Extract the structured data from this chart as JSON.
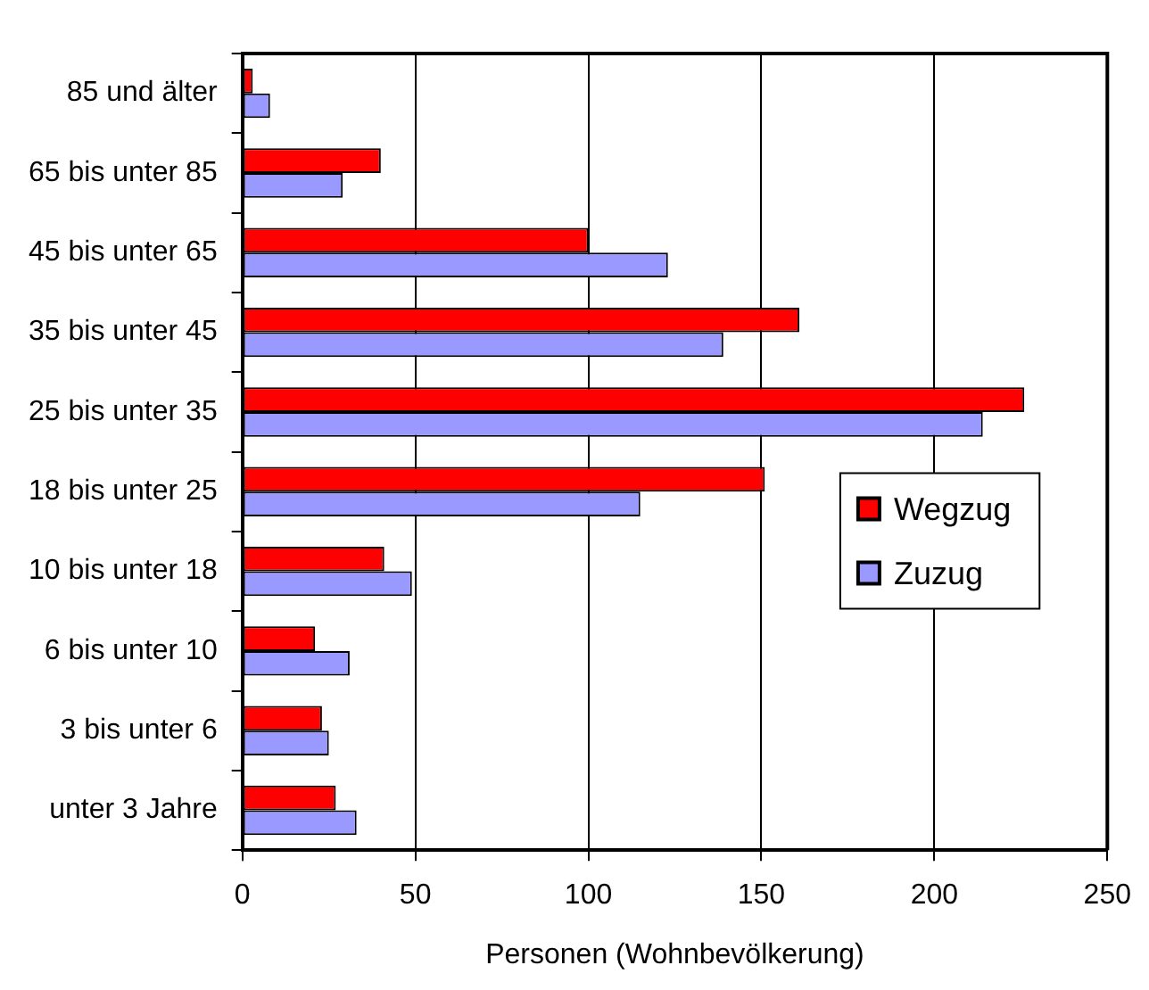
{
  "chart_data": {
    "type": "bar",
    "orientation": "horizontal",
    "categories": [
      "85 und älter",
      "65 bis unter 85",
      "45 bis unter 65",
      "35 bis unter 45",
      "25 bis unter 35",
      "18 bis unter 25",
      "10 bis unter 18",
      "6 bis unter 10",
      "3 bis unter 6",
      "unter 3 Jahre"
    ],
    "series": [
      {
        "name": "Wegzug",
        "color": "#ff0000",
        "values": [
          3,
          40,
          100,
          161,
          226,
          151,
          41,
          21,
          23,
          27
        ]
      },
      {
        "name": "Zuzug",
        "color": "#9999ff",
        "values": [
          8,
          29,
          123,
          139,
          214,
          115,
          49,
          31,
          25,
          33
        ]
      }
    ],
    "xlim": [
      0,
      250
    ],
    "xticks": [
      0,
      50,
      100,
      150,
      200,
      250
    ],
    "xlabel": "Personen (Wohnbevölkerung)",
    "grid": "x",
    "legend": "right"
  }
}
